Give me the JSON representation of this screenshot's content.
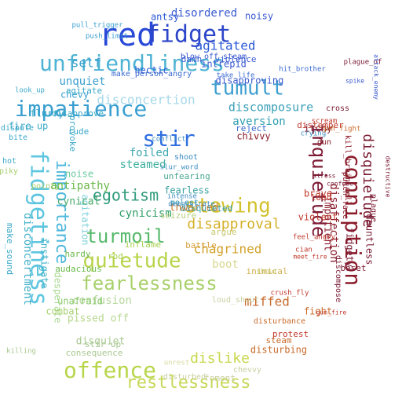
{
  "wordcloud": {
    "palette": {
      "blue": "#2b4fd6",
      "teal": "#3aa8c8",
      "green": "#7ac943",
      "olive": "#b5c240",
      "orange": "#e07b2a",
      "red": "#c0392b",
      "maroon": "#8b1a2b"
    },
    "words": [
      {
        "text": "red",
        "color": "#2848d8"
      },
      {
        "text": "fidget",
        "color": "#2d46c9"
      },
      {
        "text": "unfriendliness",
        "color": "#4fb3d4"
      },
      {
        "text": "impatience",
        "color": "#3a9fd0"
      },
      {
        "text": "tumult",
        "color": "#3f9fcf"
      },
      {
        "text": "stir",
        "color": "#2f6fe0"
      },
      {
        "text": "fidgetiness",
        "color": "#5fc6e0"
      },
      {
        "text": "importance",
        "color": "#4fb8dc"
      },
      {
        "text": "conniption",
        "color": "#8a1c2b"
      },
      {
        "text": "inquietude",
        "color": "#7d1a34"
      },
      {
        "text": "disquietude",
        "color": "#7a1c32"
      },
      {
        "text": "egotism",
        "color": "#2f9a7a"
      },
      {
        "text": "turmoil",
        "color": "#55b96a"
      },
      {
        "text": "stewing",
        "color": "#d3c22e"
      },
      {
        "text": "quietude",
        "color": "#b7d44a"
      },
      {
        "text": "fearlessness",
        "color": "#a8d06a"
      },
      {
        "text": "offence",
        "color": "#b8d64a"
      },
      {
        "text": "dislike",
        "color": "#c8d84a"
      },
      {
        "text": "restlessness",
        "color": "#c8d85a"
      },
      {
        "text": "disapproval",
        "color": "#d4b02a"
      },
      {
        "text": "chagrined",
        "color": "#d2a22a"
      },
      {
        "text": "miffed",
        "color": "#c86a2a"
      },
      {
        "text": "agitated",
        "color": "#2a58d6"
      },
      {
        "text": "disordered",
        "color": "#3a5bd0"
      },
      {
        "text": "self",
        "color": "#3ba0cf"
      },
      {
        "text": "unquiet",
        "color": "#3a9fcf"
      },
      {
        "text": "disconcertion",
        "color": "#a8d8ea"
      },
      {
        "text": "discomposure",
        "color": "#3aa0b8"
      },
      {
        "text": "aversion",
        "color": "#2f9fb0"
      },
      {
        "text": "disconcertment",
        "color": "#3fb0c8"
      },
      {
        "text": "instigate",
        "color": "#3fb0c8"
      },
      {
        "text": "agitation",
        "color": "#7fd0d8"
      },
      {
        "text": "cynicism",
        "color": "#2f9f6a"
      },
      {
        "text": "steamed",
        "color": "#3fb0a0"
      },
      {
        "text": "foiled",
        "color": "#3fa8b0"
      },
      {
        "text": "antipathy",
        "color": "#6ab84a"
      },
      {
        "text": "cynical",
        "color": "#4aaa6a"
      },
      {
        "text": "thwarted",
        "color": "#cc7a2a"
      },
      {
        "text": "impatient",
        "color": "#8a1c2b"
      },
      {
        "text": "disaffection",
        "color": "#8a1c2b"
      },
      {
        "text": "dauntless",
        "color": "#7a1a34"
      },
      {
        "text": "fidgety",
        "color": "#7a1a34"
      },
      {
        "text": "confusion",
        "color": "#b8d8a0"
      },
      {
        "text": "pissed off",
        "color": "#b8d890"
      },
      {
        "text": "disquiet",
        "color": "#a8c890"
      },
      {
        "text": "boot",
        "color": "#d8d890"
      },
      {
        "text": "noisy",
        "color": "#3a5ad0"
      },
      {
        "text": "antsy",
        "color": "#2a58d6"
      },
      {
        "text": "hectic",
        "color": "#2a58d6"
      },
      {
        "text": "intrepid",
        "color": "#3a5ad0"
      },
      {
        "text": "disapproving",
        "color": "#3a5ad0"
      },
      {
        "text": "chevy",
        "color": "#3a9fcf"
      },
      {
        "text": "chivvy",
        "color": "#8a1c2b"
      },
      {
        "text": "itchy",
        "color": "#7a1a34"
      },
      {
        "text": "reject",
        "color": "#3a6ad0"
      },
      {
        "text": "violence",
        "color": "#3a5ad0"
      },
      {
        "text": "damn",
        "color": "#3a5ad0"
      },
      {
        "text": "brave",
        "color": "#c0392b"
      },
      {
        "text": "violent",
        "color": "#c0392b"
      },
      {
        "text": "loud",
        "color": "#c0392b"
      },
      {
        "text": "beset",
        "color": "#7a1a34"
      },
      {
        "text": "protest",
        "color": "#c0392b"
      },
      {
        "text": "disturbing",
        "color": "#c86a2a"
      },
      {
        "text": "unafraid",
        "color": "#8ac86a"
      },
      {
        "text": "hardy",
        "color": "#6ab84a"
      },
      {
        "text": "audacious",
        "color": "#6ab84a"
      },
      {
        "text": "provoke",
        "color": "#3aa8c8"
      },
      {
        "text": "disapprove",
        "color": "#3aa8c8"
      },
      {
        "text": "rude",
        "color": "#3aa8c8"
      },
      {
        "text": "noise",
        "color": "#6ac8a0"
      },
      {
        "text": "unfearing",
        "color": "#4aa890"
      },
      {
        "text": "fearless",
        "color": "#3aa0a0"
      },
      {
        "text": "molest",
        "color": "#3a9fb0"
      },
      {
        "text": "seizure",
        "color": "#b8d080"
      },
      {
        "text": "battle",
        "color": "#d8a040"
      },
      {
        "text": "argue",
        "color": "#c8c870"
      },
      {
        "text": "inimical",
        "color": "#d0b050"
      },
      {
        "text": "steam",
        "color": "#c86a2a"
      },
      {
        "text": "foment",
        "color": "#c8d0a0"
      },
      {
        "text": "chevvy",
        "color": "#c8d0a0"
      },
      {
        "text": "disturbed",
        "color": "#c8d0a0"
      },
      {
        "text": "stir up",
        "color": "#a8c890"
      },
      {
        "text": "plague",
        "color": "#7a1a34"
      },
      {
        "text": "destructive",
        "color": "#7a1a34"
      },
      {
        "text": "scream",
        "color": "#c0392b"
      },
      {
        "text": "shoot",
        "color": "#3a8ac0"
      },
      {
        "text": "conflict",
        "color": "#3a8ac0"
      },
      {
        "text": "make_person_angry",
        "color": "#3a6ad0"
      },
      {
        "text": "blow_off_steam",
        "color": "#3a5ad0"
      },
      {
        "text": "kill_brain_cell",
        "color": "#8a1c2b"
      },
      {
        "text": "disquieted",
        "color": "#3a9fb0"
      },
      {
        "text": "make_sound",
        "color": "#3aa8c8"
      },
      {
        "text": "desperate",
        "color": "#a8d890"
      },
      {
        "text": "rod",
        "color": "#a8d050"
      },
      {
        "text": "inflame",
        "color": "#a8d050"
      },
      {
        "text": "combat",
        "color": "#a8d070"
      },
      {
        "text": "fight",
        "color": "#c86a2a"
      },
      {
        "text": "consequence",
        "color": "#a8c890"
      },
      {
        "text": "gun",
        "color": "#8a1c2b"
      },
      {
        "text": "punch_face",
        "color": "#8a1c2b"
      },
      {
        "text": "discompose",
        "color": "#7a1a34"
      },
      {
        "text": "flurry",
        "color": "#3aa8c8"
      },
      {
        "text": "fire up",
        "color": "#3aa8c8"
      },
      {
        "text": "bite",
        "color": "#3aa8c8"
      },
      {
        "text": "hot",
        "color": "#3aa8c8"
      },
      {
        "text": "spiky",
        "color": "#a8d070"
      },
      {
        "text": "pointy",
        "color": "#a8d070"
      },
      {
        "text": "dispute",
        "color": "#3aa8c8"
      },
      {
        "text": "agitate",
        "color": "#3aa8c8"
      },
      {
        "text": "distemper",
        "color": "#c0392b"
      },
      {
        "text": "crying",
        "color": "#3a8ac0"
      },
      {
        "text": "plague_of",
        "color": "#7a1a34"
      },
      {
        "text": "spike",
        "color": "#3a5ad0"
      },
      {
        "text": "attack_enemy",
        "color": "#3a5ad0"
      },
      {
        "text": "disturbance",
        "color": "#c86a2a"
      },
      {
        "text": "pull_trigger",
        "color": "#3a9fcf"
      },
      {
        "text": "push_limit",
        "color": "#3a9fcf"
      },
      {
        "text": "look_up",
        "color": "#3aa8c8"
      },
      {
        "text": "cross",
        "color": "#7a1a34"
      },
      {
        "text": "gun_fight",
        "color": "#c86a2a"
      },
      {
        "text": "demonstrate",
        "color": "#3a8ac0"
      },
      {
        "text": "intense",
        "color": "#3a8ac0"
      },
      {
        "text": "hit_brother",
        "color": "#3a6ad0"
      },
      {
        "text": "take_life",
        "color": "#3a6ad0"
      },
      {
        "text": "loud_shout",
        "color": "#c8d0a0"
      },
      {
        "text": "slur_word",
        "color": "#3a8ac0"
      },
      {
        "text": "shout",
        "color": "#c8c870"
      },
      {
        "text": "cian",
        "color": "#c0392b"
      },
      {
        "text": "meet_fire",
        "color": "#c0392b"
      },
      {
        "text": "feel_angry",
        "color": "#c0392b"
      },
      {
        "text": "unrest",
        "color": "#d8d8a0"
      },
      {
        "text": "stress",
        "color": "#7a1a34"
      },
      {
        "text": "confuse",
        "color": "#7a1a34"
      },
      {
        "text": "crush_fly",
        "color": "#c0392b"
      },
      {
        "text": "gun_fire",
        "color": "#c0392b"
      },
      {
        "text": "killing",
        "color": "#a8c890"
      }
    ]
  }
}
